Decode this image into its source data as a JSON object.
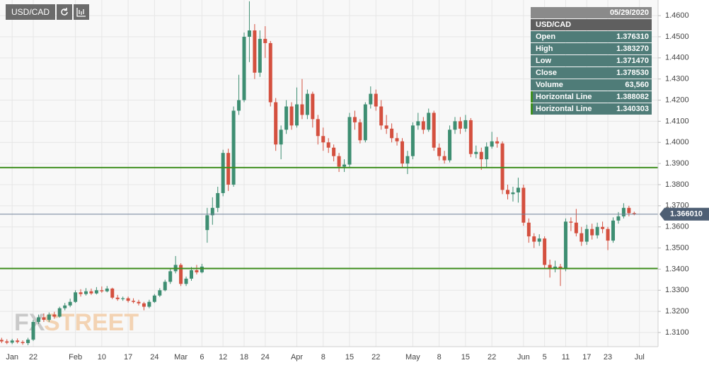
{
  "chart_data": {
    "type": "candlestick",
    "toolbar_symbol": "USD/CAD",
    "watermark": [
      "FX",
      "STREET"
    ],
    "ylim": [
      1.3033,
      1.4674
    ],
    "yticks": [
      {
        "value": 1.31,
        "label": "1.3100"
      },
      {
        "value": 1.32,
        "label": "1.3200"
      },
      {
        "value": 1.33,
        "label": "1.3300"
      },
      {
        "value": 1.34,
        "label": "1.3400"
      },
      {
        "value": 1.35,
        "label": "1.3500"
      },
      {
        "value": 1.36,
        "label": "1.3600"
      },
      {
        "value": 1.37,
        "label": "1.3700"
      },
      {
        "value": 1.38,
        "label": "1.3800"
      },
      {
        "value": 1.39,
        "label": "1.3900"
      },
      {
        "value": 1.4,
        "label": "1.4000"
      },
      {
        "value": 1.41,
        "label": "1.4100"
      },
      {
        "value": 1.42,
        "label": "1.4200"
      },
      {
        "value": 1.43,
        "label": "1.4300"
      },
      {
        "value": 1.44,
        "label": "1.4400"
      },
      {
        "value": 1.45,
        "label": "1.4500"
      },
      {
        "value": 1.46,
        "label": "1.4600"
      }
    ],
    "grid": true,
    "up_color": "#3e8e72",
    "down_color": "#d4503f",
    "categories": [
      null,
      null,
      "Jan",
      null,
      null,
      null,
      "22",
      null,
      null,
      null,
      null,
      null,
      null,
      null,
      "Feb",
      null,
      null,
      null,
      null,
      "10",
      null,
      null,
      null,
      null,
      "17",
      null,
      null,
      null,
      null,
      "24",
      null,
      null,
      null,
      null,
      "Mar",
      null,
      null,
      null,
      "6",
      null,
      null,
      null,
      "12",
      null,
      null,
      null,
      "18",
      null,
      null,
      null,
      "24",
      null,
      null,
      null,
      null,
      null,
      "Apr",
      null,
      null,
      null,
      null,
      "8",
      null,
      null,
      null,
      null,
      "15",
      null,
      null,
      null,
      null,
      "22",
      null,
      null,
      null,
      null,
      null,
      null,
      "May",
      null,
      null,
      null,
      null,
      "8",
      null,
      null,
      null,
      null,
      "15",
      null,
      null,
      null,
      null,
      "22",
      null,
      null,
      null,
      null,
      null,
      "Jun",
      null,
      null,
      null,
      "5",
      null,
      null,
      null,
      "11",
      null,
      null,
      null,
      "17",
      null,
      null,
      null,
      "23",
      null,
      null,
      null,
      null,
      null,
      "Jul"
    ],
    "open": [
      1.3065,
      1.3058,
      1.3052,
      1.3062,
      1.3055,
      1.305,
      1.3066,
      1.315,
      1.3172,
      1.316,
      1.3185,
      1.3175,
      1.3215,
      1.3228,
      1.3245,
      1.329,
      1.3282,
      1.3295,
      1.3285,
      1.33,
      1.3295,
      1.3308,
      1.3265,
      1.3258,
      1.3262,
      1.325,
      1.3245,
      1.3238,
      1.3222,
      1.3245,
      1.3275,
      1.33,
      1.334,
      1.339,
      1.342,
      1.333,
      1.3355,
      1.3395,
      1.3385,
      1.3585,
      1.3655,
      1.369,
      1.376,
      1.395,
      1.38,
      1.415,
      1.42,
      1.45,
      1.453,
      1.433,
      1.449,
      1.447,
      1.419,
      1.399,
      1.406,
      1.417,
      1.408,
      1.418,
      1.413,
      1.423,
      1.411,
      1.403,
      1.4,
      1.3975,
      1.3935,
      1.3885,
      1.3895,
      1.412,
      1.4095,
      1.401,
      1.418,
      1.423,
      1.417,
      1.408,
      1.4065,
      1.402,
      1.4005,
      1.39,
      1.3935,
      1.408,
      1.41,
      1.406,
      1.414,
      1.3975,
      1.3935,
      1.3915,
      1.406,
      1.41,
      1.4065,
      1.4105,
      1.3945,
      1.3955,
      1.392,
      1.398,
      1.4005,
      1.3995,
      1.3775,
      1.3755,
      1.37631,
      1.3785,
      1.362,
      1.3555,
      1.353,
      1.3545,
      1.342,
      1.34,
      1.3412,
      1.34,
      1.3625,
      1.362,
      1.357,
      1.353,
      1.359,
      1.356,
      1.36,
      1.359,
      1.3535,
      1.363,
      1.365,
      1.369,
      1.3665,
      null
    ],
    "high": [
      1.3075,
      1.3068,
      1.307,
      1.3072,
      1.3063,
      1.3075,
      1.316,
      1.3185,
      1.319,
      1.3195,
      1.3198,
      1.3222,
      1.324,
      1.326,
      1.33,
      1.3305,
      1.331,
      1.3308,
      1.3315,
      1.3318,
      1.332,
      1.3312,
      1.3278,
      1.327,
      1.327,
      1.3262,
      1.3255,
      1.3245,
      1.3255,
      1.3282,
      1.331,
      1.335,
      1.34,
      1.3462,
      1.3428,
      1.3365,
      1.341,
      1.342,
      1.3425,
      1.369,
      1.374,
      1.379,
      1.3965,
      1.397,
      1.417,
      1.432,
      1.452,
      1.4668,
      1.456,
      1.453,
      1.455,
      1.448,
      1.421,
      1.408,
      1.42,
      1.419,
      1.426,
      1.43,
      1.425,
      1.424,
      1.413,
      1.407,
      1.402,
      1.399,
      1.395,
      1.392,
      1.414,
      1.415,
      1.411,
      1.419,
      1.4265,
      1.425,
      1.42,
      1.413,
      1.409,
      1.4045,
      1.402,
      1.396,
      1.4095,
      1.414,
      1.412,
      1.416,
      1.415,
      1.3995,
      1.396,
      1.408,
      1.412,
      1.412,
      1.413,
      1.4115,
      1.3985,
      1.3975,
      1.4,
      1.405,
      1.4025,
      1.4005,
      1.38,
      1.379,
      1.38327,
      1.38,
      1.364,
      1.357,
      1.3565,
      1.3555,
      1.3445,
      1.344,
      1.3425,
      1.364,
      1.3645,
      1.3685,
      1.36,
      1.361,
      1.3615,
      1.362,
      1.3625,
      1.36,
      1.3645,
      1.367,
      1.3712,
      1.37,
      1.3672,
      null
    ],
    "low": [
      1.305,
      1.3045,
      1.3045,
      1.3048,
      1.3042,
      1.304,
      1.306,
      1.314,
      1.315,
      1.315,
      1.3165,
      1.317,
      1.3205,
      1.322,
      1.324,
      1.327,
      1.3275,
      1.3278,
      1.328,
      1.3288,
      1.329,
      1.3258,
      1.325,
      1.325,
      1.3242,
      1.3238,
      1.3228,
      1.3205,
      1.3215,
      1.324,
      1.3268,
      1.3295,
      1.333,
      1.338,
      1.332,
      1.332,
      1.3345,
      1.3375,
      1.338,
      1.3525,
      1.361,
      1.367,
      1.3745,
      1.377,
      1.379,
      1.413,
      1.419,
      1.438,
      1.43,
      1.431,
      1.44,
      1.417,
      1.396,
      1.392,
      1.404,
      1.406,
      1.407,
      1.411,
      1.411,
      1.407,
      1.399,
      1.396,
      1.395,
      1.391,
      1.386,
      1.386,
      1.388,
      1.406,
      1.3995,
      1.4,
      1.416,
      1.415,
      1.406,
      1.404,
      1.4,
      1.3985,
      1.388,
      1.385,
      1.392,
      1.406,
      1.404,
      1.405,
      1.396,
      1.3915,
      1.39,
      1.3905,
      1.404,
      1.404,
      1.405,
      1.393,
      1.3925,
      1.387,
      1.388,
      1.397,
      1.3975,
      1.3755,
      1.373,
      1.372,
      1.37147,
      1.3605,
      1.3525,
      1.35,
      1.351,
      1.34,
      1.336,
      1.3385,
      1.332,
      1.339,
      1.358,
      1.3555,
      1.351,
      1.3515,
      1.354,
      1.3545,
      1.357,
      1.349,
      1.3525,
      1.3615,
      1.364,
      1.365,
      1.3655,
      null
    ],
    "close": [
      1.3058,
      1.3052,
      1.3062,
      1.3055,
      1.305,
      1.3066,
      1.315,
      1.3172,
      1.316,
      1.3185,
      1.3175,
      1.3215,
      1.3228,
      1.3245,
      1.329,
      1.3282,
      1.3295,
      1.3285,
      1.33,
      1.3295,
      1.3308,
      1.3265,
      1.3258,
      1.3262,
      1.325,
      1.3245,
      1.3238,
      1.3222,
      1.3245,
      1.3275,
      1.33,
      1.334,
      1.339,
      1.342,
      1.333,
      1.3355,
      1.3395,
      1.3385,
      1.3412,
      1.3655,
      1.369,
      1.376,
      1.395,
      1.38,
      1.415,
      1.42,
      1.45,
      1.453,
      1.433,
      1.449,
      1.447,
      1.419,
      1.399,
      1.406,
      1.417,
      1.408,
      1.418,
      1.413,
      1.423,
      1.411,
      1.403,
      1.4,
      1.3975,
      1.3935,
      1.3885,
      1.3895,
      1.412,
      1.4095,
      1.401,
      1.418,
      1.423,
      1.417,
      1.408,
      1.4065,
      1.402,
      1.4005,
      1.39,
      1.3935,
      1.408,
      1.41,
      1.406,
      1.414,
      1.3975,
      1.3935,
      1.3915,
      1.406,
      1.41,
      1.4065,
      1.4105,
      1.3945,
      1.3955,
      1.392,
      1.398,
      1.4005,
      1.3995,
      1.3775,
      1.3755,
      1.3763,
      1.37853,
      1.362,
      1.3555,
      1.353,
      1.3545,
      1.342,
      1.34,
      1.3412,
      1.34,
      1.3625,
      1.362,
      1.357,
      1.353,
      1.359,
      1.356,
      1.36,
      1.359,
      1.3535,
      1.363,
      1.365,
      1.369,
      1.3665,
      1.366,
      null
    ],
    "hlines": [
      {
        "value": 1.388082,
        "color": "#3f8f1f"
      },
      {
        "value": 1.340303,
        "color": "#3f8f1f"
      }
    ],
    "price_line": {
      "value": 1.36601,
      "label": "1.366010",
      "color": "#6f8199"
    },
    "info_panel": {
      "date": "05/29/2020",
      "symbol": "USD/CAD",
      "rows": [
        [
          "Open",
          "1.376310"
        ],
        [
          "High",
          "1.383270"
        ],
        [
          "Low",
          "1.371470"
        ],
        [
          "Close",
          "1.378530"
        ],
        [
          "Volume",
          "63,560"
        ],
        [
          "Horizontal Line",
          "1.388082"
        ],
        [
          "Horizontal Line",
          "1.340303"
        ]
      ]
    }
  }
}
